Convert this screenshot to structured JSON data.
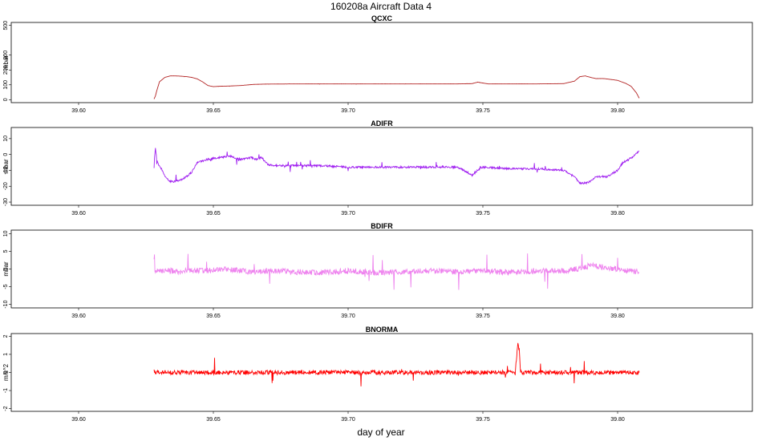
{
  "title": "160208a   Aircraft Data 4",
  "xlabel": "day of year",
  "chart_data": [
    {
      "type": "line",
      "title": "QCXC",
      "ylabel": "mbar",
      "xlim": [
        39.575,
        39.85
      ],
      "ylim": [
        -20,
        520
      ],
      "xticks": [
        "39.60",
        "39.65",
        "39.70",
        "39.75",
        "39.80"
      ],
      "yticks": [
        "0",
        "100",
        "200",
        "300",
        "500"
      ],
      "color": "#b22222",
      "noise": 0.3,
      "series": [
        {
          "x": [
            39.628,
            39.6285,
            39.629,
            39.63,
            39.632,
            39.634,
            39.636,
            39.638,
            39.64,
            39.642,
            39.644,
            39.646,
            39.648,
            39.65,
            39.652,
            39.656,
            39.66,
            39.665,
            39.67,
            39.68,
            39.69,
            39.7,
            39.71,
            39.72,
            39.73,
            39.74,
            39.746,
            39.748,
            39.75,
            39.752,
            39.76,
            39.77,
            39.78,
            39.784,
            39.786,
            39.788,
            39.79,
            39.792,
            39.795,
            39.8,
            39.803,
            39.805,
            39.807,
            39.808
          ],
          "y": [
            5,
            25,
            60,
            120,
            150,
            160,
            160,
            158,
            155,
            150,
            140,
            120,
            95,
            88,
            90,
            92,
            95,
            103,
            105,
            106,
            106,
            106,
            106,
            106,
            106,
            106,
            108,
            118,
            112,
            106,
            106,
            106,
            108,
            125,
            155,
            160,
            150,
            142,
            142,
            130,
            110,
            90,
            45,
            10
          ]
        }
      ]
    },
    {
      "type": "line",
      "title": "ADIFR",
      "ylabel": "mbar",
      "xlim": [
        39.575,
        39.85
      ],
      "ylim": [
        -32,
        17
      ],
      "xticks": [
        "39.60",
        "39.65",
        "39.70",
        "39.75",
        "39.80"
      ],
      "yticks": [
        "-30",
        "-20",
        "-10",
        "0",
        "10"
      ],
      "color": "#a020f0",
      "noise": 0.6,
      "series": [
        {
          "x": [
            39.628,
            39.6285,
            39.629,
            39.6295,
            39.63,
            39.631,
            39.632,
            39.634,
            39.636,
            39.638,
            39.64,
            39.642,
            39.644,
            39.648,
            39.652,
            39.656,
            39.66,
            39.664,
            39.666,
            39.668,
            39.67,
            39.672,
            39.68,
            39.69,
            39.7,
            39.71,
            39.72,
            39.73,
            39.74,
            39.742,
            39.744,
            39.746,
            39.748,
            39.75,
            39.76,
            39.77,
            39.78,
            39.784,
            39.786,
            39.788,
            39.79,
            39.792,
            39.796,
            39.8,
            39.802,
            39.804,
            39.806,
            39.808
          ],
          "y": [
            -5,
            4,
            -2,
            -6,
            -7,
            -10,
            -14,
            -17,
            -17,
            -16,
            -14,
            -11,
            -5,
            -3,
            -2,
            -1,
            -3,
            -2,
            -3,
            -2,
            -6,
            -7,
            -7,
            -7,
            -8,
            -8,
            -8,
            -8,
            -8,
            -9,
            -11,
            -13,
            -10,
            -8,
            -9,
            -9,
            -10,
            -14,
            -18,
            -18,
            -17,
            -14,
            -14,
            -10,
            -5,
            -3,
            -1,
            2
          ]
        }
      ]
    },
    {
      "type": "line",
      "title": "BDIFR",
      "ylabel": "mbar",
      "xlim": [
        39.575,
        39.85
      ],
      "ylim": [
        -11,
        11
      ],
      "xticks": [
        "39.60",
        "39.65",
        "39.70",
        "39.75",
        "39.80"
      ],
      "yticks": [
        "-10",
        "-5",
        "0",
        "5",
        "10"
      ],
      "color": "#ee82ee",
      "noise": 0.8,
      "series": [
        {
          "x": [
            39.628,
            39.63,
            39.635,
            39.638,
            39.64,
            39.645,
            39.65,
            39.655,
            39.66,
            39.665,
            39.67,
            39.68,
            39.69,
            39.7,
            39.71,
            39.72,
            39.73,
            39.74,
            39.75,
            39.76,
            39.77,
            39.78,
            39.785,
            39.79,
            39.8,
            39.805,
            39.808
          ],
          "y": [
            -1,
            -0.5,
            -0.5,
            -1,
            -0.5,
            -0.5,
            -0.3,
            0,
            -0.5,
            -1,
            -0.5,
            -0.8,
            -1,
            -0.5,
            -1,
            -0.8,
            -0.5,
            -0.8,
            -0.5,
            -1,
            -0.5,
            -0.5,
            0,
            1,
            0,
            -0.5,
            -1
          ]
        }
      ]
    },
    {
      "type": "line",
      "title": "BNORMA",
      "ylabel": "m/s^2",
      "xlim": [
        39.575,
        39.85
      ],
      "ylim": [
        -2.15,
        2.15
      ],
      "xticks": [
        "39.60",
        "39.65",
        "39.70",
        "39.75",
        "39.80"
      ],
      "yticks": [
        "-2",
        "-1",
        "0",
        "1",
        "2"
      ],
      "color": "#ff0000",
      "noise": 0.12,
      "series": [
        {
          "x": [
            39.628,
            39.64,
            39.66,
            39.68,
            39.7,
            39.72,
            39.74,
            39.76,
            39.762,
            39.763,
            39.7635,
            39.764,
            39.765,
            39.78,
            39.8,
            39.808
          ],
          "y": [
            0,
            0,
            0,
            0,
            0,
            0,
            0,
            0,
            0,
            1.6,
            1.2,
            0,
            0,
            0,
            0,
            0
          ]
        }
      ]
    }
  ]
}
